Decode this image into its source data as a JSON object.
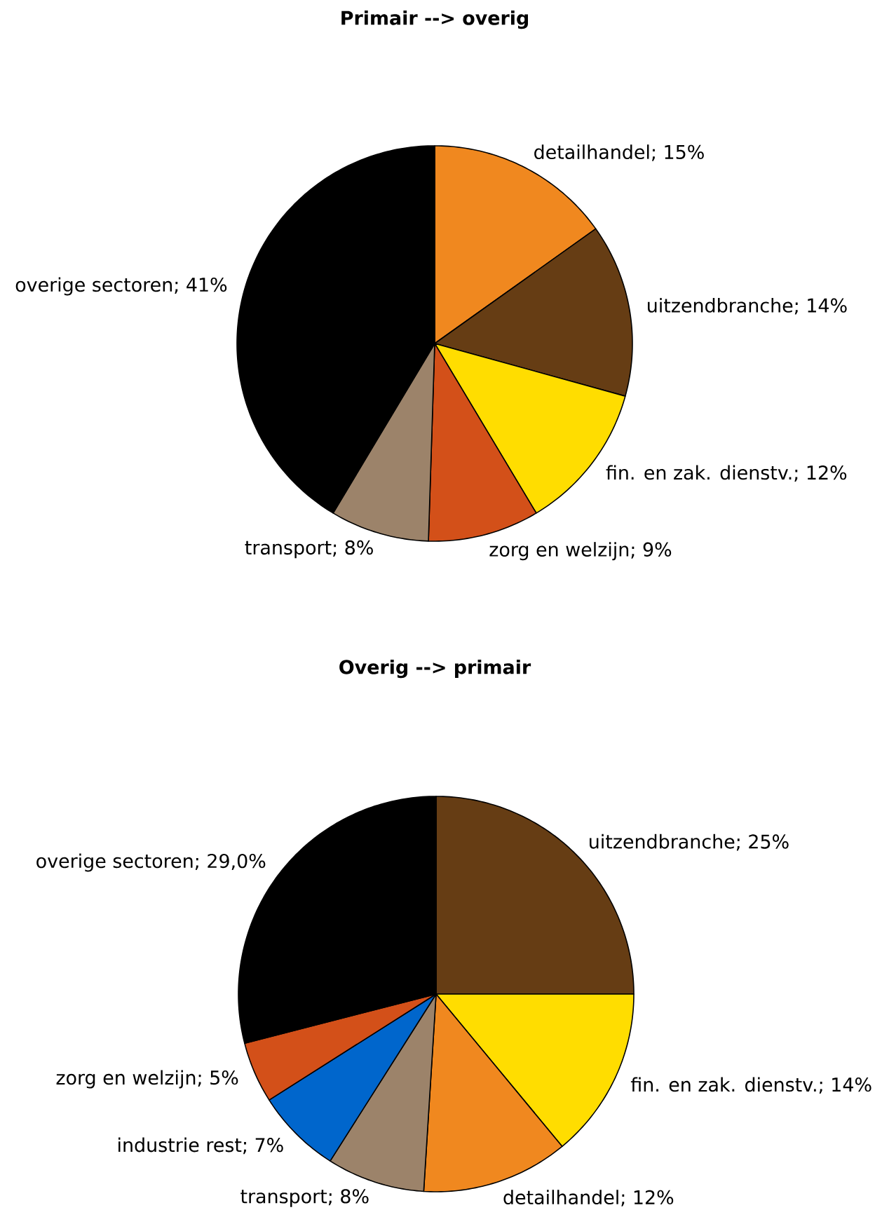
{
  "chart_data": [
    {
      "type": "pie",
      "title": "Primair --> overig",
      "categories": [
        "detailhandel; 15%",
        "uitzendbranche; 14%",
        "fin. en zak. dienstv.; 12%",
        "zorg en welzijn; 9%",
        "transport; 8%",
        "overige sectoren; 41%"
      ],
      "values": [
        15,
        14,
        12,
        9,
        8,
        41
      ],
      "colors": [
        "#f0881f",
        "#663d14",
        "#ffdd00",
        "#d35019",
        "#9c836a",
        "#000000"
      ]
    },
    {
      "type": "pie",
      "title": "Overig --> primair",
      "categories": [
        "uitzendbranche; 25%",
        "fin. en zak. dienstv.; 14%",
        "detailhandel; 12%",
        "transport; 8%",
        "industrie rest; 7%",
        "zorg en welzijn; 5%",
        "overige sectoren; 29,0%"
      ],
      "values": [
        25,
        14,
        12,
        8,
        7,
        5,
        29.0
      ],
      "colors": [
        "#663d14",
        "#ffdd00",
        "#f0881f",
        "#9c836a",
        "#0066cc",
        "#d35019",
        "#000000"
      ]
    }
  ]
}
